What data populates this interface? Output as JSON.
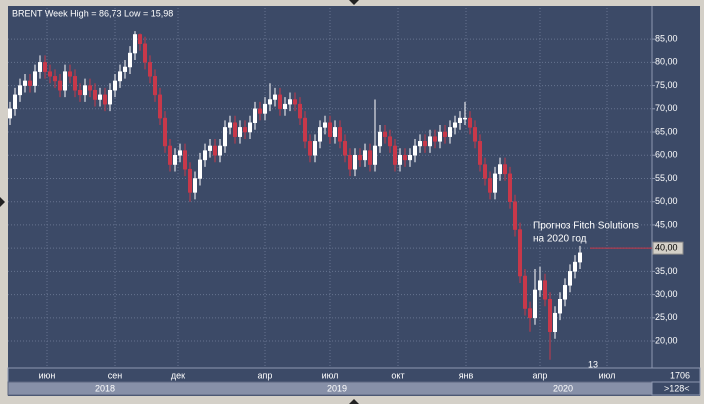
{
  "chart_data": {
    "type": "candlestick",
    "title": "BRENT Week High = 86,73 Low = 15,98",
    "series": [
      {
        "name": "BRENT",
        "up_color": "#ffffff",
        "down_color": "#c8384a",
        "open": [
          68,
          70,
          73,
          75,
          76,
          75,
          78,
          80,
          78,
          77,
          76,
          74,
          78,
          77,
          74,
          73,
          75,
          74,
          72,
          73,
          71,
          74,
          76,
          78,
          79,
          82,
          86,
          84,
          80,
          77,
          73,
          68,
          62,
          58,
          60,
          61,
          57,
          52,
          55,
          59,
          61,
          62,
          60,
          62,
          66,
          67,
          64,
          66,
          65,
          67,
          70,
          69,
          71,
          72,
          73,
          70,
          71,
          72,
          71,
          68,
          63,
          60,
          63,
          66,
          67,
          64,
          66,
          63,
          60,
          57,
          60,
          59,
          61,
          58,
          62,
          65,
          64,
          62,
          58,
          60,
          59,
          60,
          62,
          63,
          62,
          64,
          63,
          65,
          64,
          66,
          67,
          68,
          68,
          66,
          63,
          58,
          55,
          52,
          56,
          58,
          56,
          50,
          44,
          34,
          27,
          25,
          31,
          33,
          29,
          22,
          26,
          29,
          32,
          35,
          37
        ],
        "high": [
          71.5,
          74.5,
          76.5,
          77.5,
          77.5,
          79.5,
          81.5,
          81.5,
          79.5,
          78.5,
          77.5,
          79.5,
          79.5,
          78.5,
          75.5,
          76.5,
          76.5,
          75.5,
          74.5,
          74.5,
          75.5,
          77.5,
          79.5,
          80.5,
          83.5,
          86.73,
          86.2,
          85.5,
          81.5,
          78.5,
          74.5,
          69.5,
          63.5,
          61.5,
          62.5,
          62.5,
          58.5,
          56.5,
          60.5,
          62.5,
          63.5,
          63.5,
          63.5,
          67.5,
          68.5,
          68.5,
          67.5,
          67.5,
          68.5,
          71.5,
          71.5,
          72.5,
          75.5,
          74.5,
          74.5,
          72.5,
          73.5,
          73.5,
          72.5,
          69.5,
          64.5,
          64.5,
          67.5,
          68.5,
          68.5,
          67.5,
          67.5,
          64.5,
          61.5,
          61.5,
          61.5,
          62.5,
          62.5,
          72,
          66.5,
          66.5,
          65.5,
          63.5,
          61.5,
          61.5,
          61.5,
          63.5,
          64.5,
          64.5,
          65.5,
          65.5,
          66.5,
          66.5,
          67.5,
          68.5,
          69.5,
          71.5,
          69.5,
          67.5,
          64.5,
          59.5,
          56.5,
          57.5,
          59.5,
          59.5,
          57.5,
          51.5,
          45.5,
          35.5,
          28.5,
          35.5,
          36,
          34.5,
          30.5,
          27.5,
          30.5,
          33.5,
          36.5,
          38.5,
          40.5
        ],
        "low": [
          66.5,
          68.5,
          71.5,
          73.5,
          73.5,
          73.5,
          76.5,
          76.5,
          75.5,
          74.5,
          72.5,
          72.5,
          75.5,
          72.5,
          71.5,
          71.5,
          72.5,
          70.5,
          70.5,
          69.5,
          69.5,
          72.5,
          74.5,
          76.5,
          77.5,
          80.5,
          82.5,
          78.5,
          75.5,
          71.5,
          66.5,
          60.5,
          56.5,
          56.5,
          58.5,
          55.5,
          50,
          50.5,
          53.5,
          57.5,
          59.5,
          58.5,
          58.5,
          60.5,
          64.5,
          62.5,
          62.5,
          63.5,
          63.5,
          65.5,
          67.5,
          67.5,
          69.5,
          70.5,
          68.5,
          68.5,
          69.5,
          69.5,
          66.5,
          61.5,
          58.5,
          58.5,
          61.5,
          64.5,
          62.5,
          62.5,
          61.5,
          58.5,
          55.5,
          55.5,
          57.5,
          57.5,
          56.5,
          56.5,
          60.5,
          62.5,
          60.5,
          56.5,
          56.5,
          57.5,
          57.5,
          58.5,
          60.5,
          60.5,
          60.5,
          61.5,
          61.5,
          62.5,
          62.5,
          64.5,
          65.5,
          66.5,
          64.5,
          61.5,
          56.5,
          53.5,
          50.5,
          50.5,
          54.5,
          54.5,
          48.5,
          42.5,
          32.5,
          25.5,
          22,
          23.5,
          29.5,
          27.5,
          15.98,
          20.5,
          24.5,
          27.5,
          30.5,
          33.5,
          35.5
        ],
        "close": [
          70,
          73,
          75,
          76,
          75,
          78,
          80,
          78,
          77,
          76,
          74,
          78,
          77,
          74,
          73,
          75,
          74,
          72,
          73,
          71,
          74,
          76,
          78,
          79,
          82,
          86,
          84,
          80,
          77,
          73,
          68,
          62,
          58,
          60,
          61,
          57,
          52,
          55,
          59,
          61,
          62,
          60,
          62,
          66,
          67,
          64,
          66,
          65,
          67,
          70,
          69,
          71,
          72,
          73,
          70,
          71,
          72,
          71,
          68,
          63,
          60,
          63,
          66,
          67,
          64,
          66,
          63,
          60,
          57,
          60,
          59,
          61,
          58,
          62,
          65,
          64,
          62,
          58,
          60,
          59,
          60,
          62,
          63,
          62,
          64,
          63,
          65,
          64,
          66,
          67,
          68,
          68,
          66,
          63,
          58,
          55,
          52,
          56,
          58,
          56,
          50,
          44,
          34,
          27,
          25,
          31,
          33,
          29,
          22,
          26,
          29,
          32,
          35,
          37,
          39
        ]
      }
    ],
    "ylim": [
      14.2,
      91.7
    ],
    "yticks": [
      {
        "value": 20,
        "label": "20,00"
      },
      {
        "value": 25,
        "label": "25,00"
      },
      {
        "value": 30,
        "label": "30,00"
      },
      {
        "value": 35,
        "label": "35,00"
      },
      {
        "value": 40,
        "label": "40,00"
      },
      {
        "value": 45,
        "label": "45,00"
      },
      {
        "value": 50,
        "label": "50,00"
      },
      {
        "value": 55,
        "label": "55,00"
      },
      {
        "value": 60,
        "label": "60,00"
      },
      {
        "value": 65,
        "label": "65,00"
      },
      {
        "value": 70,
        "label": "70,00"
      },
      {
        "value": 75,
        "label": "75,00"
      },
      {
        "value": 80,
        "label": "80,00"
      },
      {
        "value": 85,
        "label": "85,00"
      }
    ],
    "xlim": [
      -0.4,
      128.4
    ],
    "xticks": [
      {
        "value": 7.4,
        "label": "июн"
      },
      {
        "value": 21,
        "label": "сен"
      },
      {
        "value": 33.6,
        "label": "дек"
      },
      {
        "value": 51,
        "label": "апр"
      },
      {
        "value": 64,
        "label": "июл"
      },
      {
        "value": 77.6,
        "label": "окт"
      },
      {
        "value": 91.2,
        "label": "янв"
      },
      {
        "value": 106,
        "label": "апр"
      },
      {
        "value": 119.4,
        "label": "июл"
      }
    ],
    "year_ticks": [
      {
        "value": 19,
        "label": "2018"
      },
      {
        "value": 65.4,
        "label": "2019"
      },
      {
        "value": 110.6,
        "label": "2020"
      }
    ],
    "annotation": {
      "text": [
        "Прогноз Fitch Solutions",
        "на 2020 год"
      ],
      "level": {
        "value": 40,
        "label": "40,00"
      },
      "color": "#c8384a"
    },
    "grid": true,
    "status": {
      "counter": "13",
      "bars": "1706",
      "zoom": ">128<"
    }
  }
}
